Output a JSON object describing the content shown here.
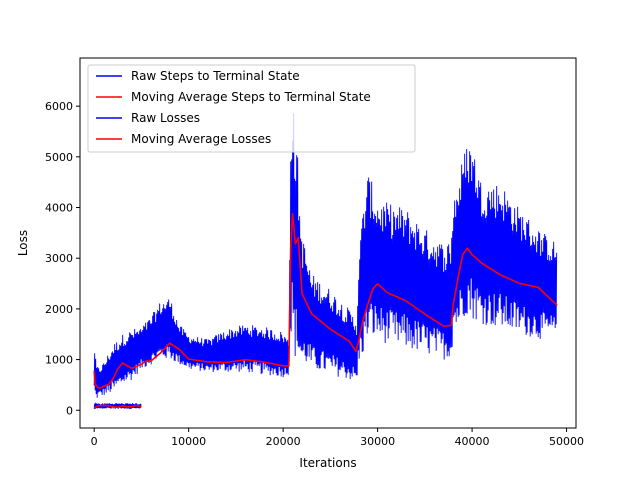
{
  "chart_data": {
    "type": "line",
    "title": "",
    "xlabel": "Iterations",
    "ylabel": "Loss",
    "xlim": [
      -1500,
      51000
    ],
    "ylim": [
      -350,
      6950
    ],
    "x_ticks": [
      0,
      10000,
      20000,
      30000,
      40000,
      50000
    ],
    "x_tick_labels": [
      "0",
      "10000",
      "20000",
      "30000",
      "40000",
      "50000"
    ],
    "y_ticks": [
      0,
      1000,
      2000,
      3000,
      4000,
      5000,
      6000
    ],
    "y_tick_labels": [
      "0",
      "1000",
      "2000",
      "3000",
      "4000",
      "5000",
      "6000"
    ],
    "grid": false,
    "legend": {
      "position": "top-left",
      "entries": [
        {
          "label": "Raw Steps to Terminal State",
          "color": "#0000ff"
        },
        {
          "label": "Moving Average Steps to Terminal State",
          "color": "#ff0000"
        },
        {
          "label": "Raw Losses",
          "color": "#0000ff"
        },
        {
          "label": "Moving Average Losses",
          "color": "#ff0000"
        }
      ]
    },
    "series": [
      {
        "name": "Raw Steps to Terminal State",
        "color": "#0000ff",
        "kind": "band",
        "x": [
          0,
          200,
          500,
          1000,
          1500,
          2000,
          2500,
          3000,
          3500,
          4000,
          4500,
          5000
        ],
        "low": [
          10,
          20,
          25,
          25,
          30,
          30,
          25,
          30,
          30,
          25,
          30,
          30
        ],
        "high": [
          160,
          150,
          140,
          140,
          145,
          140,
          145,
          140,
          140,
          145,
          140,
          140
        ]
      },
      {
        "name": "Moving Average Steps to Terminal State",
        "color": "#ff0000",
        "kind": "line",
        "x": [
          0,
          500,
          1000,
          1500,
          2000,
          2500,
          3000,
          3500,
          4000,
          4500,
          5000
        ],
        "y": [
          60,
          65,
          70,
          68,
          72,
          70,
          71,
          69,
          70,
          72,
          70
        ]
      },
      {
        "name": "Raw Losses",
        "color": "#0000ff",
        "kind": "band",
        "x": [
          0,
          200,
          500,
          1000,
          2000,
          3000,
          4000,
          5000,
          6000,
          7000,
          8000,
          9000,
          10000,
          12000,
          14000,
          16000,
          18000,
          20000,
          20600,
          20800,
          21000,
          21200,
          21500,
          21800,
          22000,
          22500,
          23000,
          25000,
          27000,
          27800,
          28000,
          28500,
          29000,
          30000,
          31000,
          33000,
          35000,
          37000,
          37800,
          38000,
          38500,
          39000,
          39500,
          40000,
          41000,
          43000,
          45000,
          47000,
          49000
        ],
        "low": [
          300,
          200,
          250,
          280,
          350,
          500,
          600,
          800,
          900,
          1000,
          1000,
          900,
          800,
          750,
          750,
          750,
          700,
          650,
          700,
          1500,
          1400,
          1000,
          1000,
          900,
          800,
          900,
          800,
          700,
          600,
          500,
          900,
          1100,
          1400,
          1400,
          1300,
          1200,
          1100,
          1000,
          1000,
          1500,
          1600,
          1800,
          1900,
          1800,
          1700,
          1600,
          1500,
          1400,
          1400
        ],
        "high": [
          1450,
          900,
          850,
          950,
          1300,
          1500,
          1600,
          1650,
          1850,
          2150,
          2250,
          1700,
          1500,
          1400,
          1600,
          1700,
          1650,
          1550,
          1400,
          5500,
          6550,
          5500,
          5200,
          3900,
          3500,
          3100,
          2700,
          2400,
          2000,
          1800,
          3000,
          4100,
          4700,
          4200,
          4100,
          4000,
          3600,
          3300,
          3400,
          4300,
          4500,
          5000,
          5300,
          5300,
          4500,
          4500,
          4000,
          3600,
          3300
        ]
      },
      {
        "name": "Moving Average Losses",
        "color": "#ff0000",
        "kind": "line",
        "x": [
          0,
          100,
          300,
          600,
          1000,
          1500,
          2000,
          2500,
          3000,
          3500,
          4000,
          5000,
          5500,
          6000,
          7000,
          8000,
          9000,
          10000,
          12000,
          14000,
          16000,
          18000,
          20000,
          20600,
          20800,
          21000,
          21300,
          21600,
          22000,
          22500,
          23000,
          25000,
          27000,
          27700,
          28000,
          28500,
          29000,
          29500,
          30000,
          31000,
          33000,
          35000,
          37000,
          37800,
          38000,
          38500,
          39000,
          39500,
          40000,
          41000,
          43000,
          45000,
          47000,
          49000
        ],
        "y": [
          750,
          500,
          470,
          450,
          480,
          500,
          650,
          800,
          950,
          850,
          800,
          900,
          1000,
          950,
          1100,
          1350,
          1200,
          1000,
          950,
          950,
          1000,
          950,
          900,
          900,
          3200,
          3850,
          3300,
          3400,
          2300,
          2100,
          1900,
          1600,
          1350,
          1150,
          1400,
          1800,
          2100,
          2400,
          2500,
          2300,
          2150,
          1900,
          1650,
          1700,
          2100,
          2600,
          3050,
          3200,
          3100,
          2900,
          2700,
          2500,
          2400,
          2050
        ]
      }
    ]
  }
}
